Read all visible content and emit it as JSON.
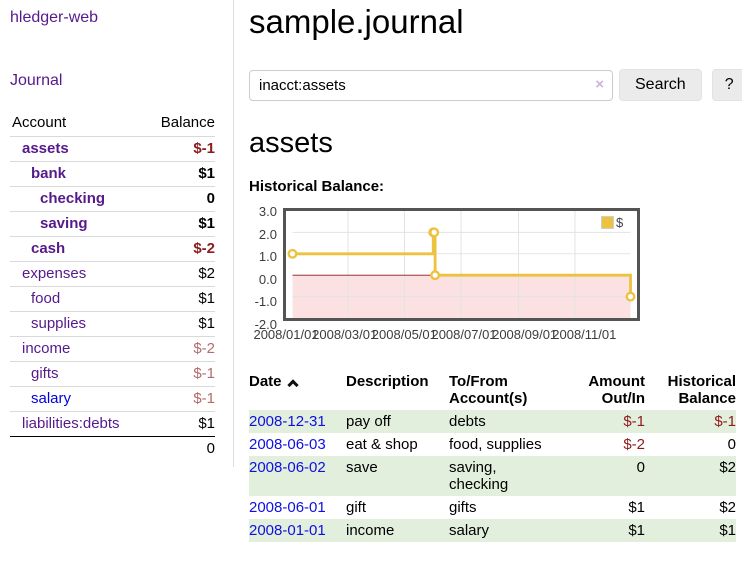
{
  "app": {
    "title": "hledger-web"
  },
  "sidebar": {
    "journal_link": "Journal",
    "headers": {
      "account": "Account",
      "balance": "Balance"
    },
    "accounts": [
      {
        "name": "assets",
        "balance": "$-1"
      },
      {
        "name": "bank",
        "balance": "$1"
      },
      {
        "name": "checking",
        "balance": "0"
      },
      {
        "name": "saving",
        "balance": "$1"
      },
      {
        "name": "cash",
        "balance": "$-2"
      },
      {
        "name": "expenses",
        "balance": "$2"
      },
      {
        "name": "food",
        "balance": "$1"
      },
      {
        "name": "supplies",
        "balance": "$1"
      },
      {
        "name": "income",
        "balance": "$-2"
      },
      {
        "name": "gifts",
        "balance": "$-1"
      },
      {
        "name": "salary",
        "balance": "$-1"
      },
      {
        "name": "liabilities:debts",
        "balance": "$1"
      }
    ],
    "total": "0"
  },
  "header": {
    "title": "sample.journal"
  },
  "search": {
    "value": "inacct:assets",
    "clear_icon": "×",
    "button_label": "Search",
    "help_label": "?"
  },
  "account_page": {
    "heading": "assets",
    "chart_title": "Historical Balance:"
  },
  "chart_data": {
    "type": "line",
    "step": true,
    "title": "Historical Balance:",
    "series": [
      {
        "name": "$",
        "points": [
          [
            "2008-01-01",
            1
          ],
          [
            "2008-06-01",
            2
          ],
          [
            "2008-06-02",
            2
          ],
          [
            "2008-06-03",
            0
          ],
          [
            "2008-12-31",
            -1
          ]
        ]
      }
    ],
    "x_start": "2008-01-01",
    "x_end": "2008-12-31",
    "ymin": -2,
    "ymax": 3,
    "yticks": [
      "3.0",
      "2.0",
      "1.0",
      "0.0",
      "-1.0",
      "-2.0"
    ],
    "xticks": [
      "2008/01/01",
      "2008/03/01",
      "2008/05/01",
      "2008/07/01",
      "2008/09/01",
      "2008/11/01"
    ],
    "legend": {
      "label": "$",
      "position": "top-right"
    },
    "grid": true,
    "colors": {
      "line": "#EDC240",
      "negative_fill": "#fbe1e1",
      "zero_line": "#8b1a1a",
      "grid": "#e2e2e2",
      "border": "#545454"
    }
  },
  "register": {
    "columns": {
      "date": "Date",
      "description": "Description",
      "accounts": "To/From Account(s)",
      "amount": "Amount Out/In",
      "balance": "Historical Balance"
    },
    "rows": [
      {
        "date": "2008-12-31",
        "description": "pay off",
        "accounts": "debts",
        "amount": "$-1",
        "balance": "$-1"
      },
      {
        "date": "2008-06-03",
        "description": "eat & shop",
        "accounts": "food, supplies",
        "amount": "$-2",
        "balance": "0"
      },
      {
        "date": "2008-06-02",
        "description": "save",
        "accounts": "saving, checking",
        "amount": "0",
        "balance": "$2"
      },
      {
        "date": "2008-06-01",
        "description": "gift",
        "accounts": "gifts",
        "amount": "$1",
        "balance": "$2"
      },
      {
        "date": "2008-01-01",
        "description": "income",
        "accounts": "salary",
        "amount": "$1",
        "balance": "$1"
      }
    ]
  }
}
